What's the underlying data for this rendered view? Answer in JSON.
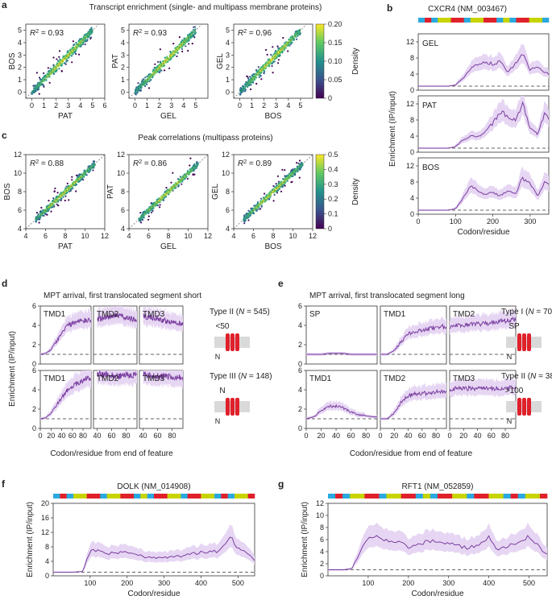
{
  "panels": {
    "a": {
      "letter": "a",
      "title": "Transcript enrichment (single- and multipass membrane proteins)",
      "colorbar": {
        "label": "Density",
        "ticks": [
          "0.20",
          "0.15",
          "0.10",
          "0.05",
          "0"
        ]
      },
      "plots": [
        {
          "r2": "= 0.93",
          "xlabel": "PAT",
          "ylabel": "BOS",
          "xticks": [
            "0",
            "1",
            "2",
            "3",
            "4",
            "5",
            "6"
          ],
          "yticks": [
            "0",
            "1",
            "2",
            "3",
            "4",
            "5"
          ]
        },
        {
          "r2": "= 0.93",
          "xlabel": "GEL",
          "ylabel": "PAT",
          "xticks": [
            "0",
            "1",
            "2",
            "3",
            "4",
            "5"
          ],
          "yticks": [
            "0",
            "1",
            "2",
            "3",
            "4",
            "5"
          ]
        },
        {
          "r2": "= 0.96",
          "xlabel": "BOS",
          "ylabel": "GEL",
          "xticks": [
            "0",
            "1",
            "2",
            "3",
            "4",
            "5"
          ],
          "yticks": [
            "0",
            "1",
            "2",
            "3",
            "4",
            "5"
          ]
        }
      ]
    },
    "c": {
      "letter": "c",
      "title": "Peak correlations (multipass proteins)",
      "colorbar": {
        "label": "Density",
        "ticks": [
          "0.5",
          "0.4",
          "0.3",
          "0.2",
          "0.1",
          "0"
        ]
      },
      "plots": [
        {
          "r2": "= 0.88",
          "xlabel": "PAT",
          "ylabel": "BOS",
          "xticks": [
            "4",
            "6",
            "8",
            "10",
            "12"
          ],
          "yticks": [
            "4",
            "6",
            "8",
            "10",
            "12"
          ]
        },
        {
          "r2": "= 0.86",
          "xlabel": "GEL",
          "ylabel": "PAT",
          "xticks": [
            "4",
            "6",
            "8",
            "10",
            "12"
          ],
          "yticks": [
            "4",
            "6",
            "8",
            "10",
            "12"
          ]
        },
        {
          "r2": "= 0.89",
          "xlabel": "BOS",
          "ylabel": "GEL",
          "xticks": [
            "4",
            "6",
            "8",
            "10",
            "12"
          ],
          "yticks": [
            "4",
            "6",
            "8",
            "10",
            "12"
          ]
        }
      ]
    },
    "b": {
      "letter": "b",
      "title": "CXCR4 (NM_003467)",
      "xlabel": "Codon/residue",
      "ylabel": "Enrichment (IP/input)",
      "xticks": [
        "0",
        "100",
        "200",
        "300"
      ],
      "yticks": [
        "0",
        "4",
        "8",
        "12"
      ],
      "subs": [
        "GEL",
        "PAT",
        "BOS"
      ]
    },
    "d": {
      "letter": "d",
      "title": "MPT arrival, first translocated segment short",
      "ylabel": "Enrichment (IP/input)",
      "xlabel": "Codon/residue from end of feature",
      "yticks": [
        "0",
        "2",
        "4",
        "6"
      ],
      "xticks_first": [
        "0",
        "20",
        "40",
        "60",
        "80"
      ],
      "xticks_rest": [
        "40",
        "60",
        "80"
      ],
      "rows": [
        [
          "TMD1",
          "TMD2",
          "TMD3"
        ],
        [
          "TMD1",
          "TMD2",
          "TMD3"
        ]
      ],
      "types": [
        {
          "label": "Type II",
          "n": "545",
          "note": "<50"
        },
        {
          "label": "Type III",
          "n": "148",
          "note": "N"
        }
      ]
    },
    "e": {
      "letter": "e",
      "title": "MPT arrival, first translocated segment long",
      "xlabel": "Codon/residue from end of feature",
      "yticks": [
        "0",
        "2",
        "4",
        "6"
      ],
      "xticks": [
        "0",
        "20",
        "40",
        "60",
        "80"
      ],
      "rows": [
        [
          "SP",
          "TMD1",
          "TMD2"
        ],
        [
          "TMD1",
          "TMD2",
          "TMD3"
        ]
      ],
      "types": [
        {
          "label": "Type I",
          "n": "70",
          "note": "SP"
        },
        {
          "label": "Type II",
          "n": "38",
          "note": ">100"
        }
      ]
    },
    "f": {
      "letter": "f",
      "title": "DOLK (NM_014908)",
      "xlabel": "Codon/residue",
      "ylabel": "Enrichment (IP/input)",
      "xticks": [
        "100",
        "200",
        "300",
        "400",
        "500"
      ],
      "yticks": [
        "0",
        "4",
        "8",
        "12",
        "16",
        "20"
      ]
    },
    "g": {
      "letter": "g",
      "title": "RFT1 (NM_052859)",
      "xlabel": "Codon/residue",
      "ylabel": "Enrichment (IP/input)",
      "xticks": [
        "100",
        "200",
        "300",
        "400",
        "500"
      ],
      "yticks": [
        "0",
        "2",
        "4",
        "6",
        "8",
        "10",
        "12"
      ]
    }
  },
  "chart_data": [
    {
      "type": "scatter",
      "panel": "a",
      "kind": "density",
      "series": [
        {
          "name": "BOS vs PAT",
          "r2": 0.93
        },
        {
          "name": "PAT vs GEL",
          "r2": 0.93
        },
        {
          "name": "GEL vs BOS",
          "r2": 0.96
        }
      ],
      "xlim": [
        -0.5,
        6
      ],
      "ylim": [
        -0.5,
        5.5
      ]
    },
    {
      "type": "scatter",
      "panel": "c",
      "kind": "density",
      "series": [
        {
          "name": "BOS vs PAT",
          "r2": 0.88
        },
        {
          "name": "PAT vs GEL",
          "r2": 0.86
        },
        {
          "name": "GEL vs BOS",
          "r2": 0.89
        }
      ],
      "xlim": [
        4,
        12
      ],
      "ylim": [
        4,
        12
      ]
    },
    {
      "type": "line",
      "panel": "b",
      "xlim": [
        0,
        350
      ],
      "ylim": [
        0,
        14
      ],
      "series": [
        {
          "x": [
            0,
            80,
            100,
            120,
            140,
            160,
            180,
            200,
            220,
            240,
            260,
            280,
            300,
            320,
            340,
            350
          ],
          "y": [
            1,
            1,
            1.3,
            3,
            5.5,
            6.2,
            7,
            6.5,
            7,
            4.5,
            6.5,
            9,
            5,
            6,
            4.5,
            4
          ]
        },
        {
          "x": [
            0,
            80,
            100,
            120,
            140,
            160,
            180,
            200,
            220,
            240,
            260,
            280,
            300,
            320,
            340,
            350
          ],
          "y": [
            1,
            1,
            1.4,
            3,
            4,
            3.8,
            5,
            7.2,
            10,
            9,
            8,
            12,
            6,
            4.5,
            10,
            8
          ]
        },
        {
          "x": [
            0,
            80,
            100,
            120,
            140,
            160,
            180,
            200,
            220,
            240,
            260,
            280,
            300,
            320,
            340,
            350
          ],
          "y": [
            1,
            1,
            1.4,
            4,
            7,
            6,
            5,
            5.5,
            4.5,
            6,
            5,
            9,
            7.5,
            4.5,
            8,
            7
          ]
        }
      ]
    },
    {
      "type": "line",
      "panel": "d",
      "xlim": [
        0,
        95
      ],
      "ylim": [
        0,
        6
      ],
      "series": [
        {
          "x": [
            0,
            10,
            20,
            30,
            40,
            50,
            60,
            70,
            80,
            90,
            95
          ],
          "y": [
            1,
            1.1,
            1.5,
            2.3,
            3.2,
            3.9,
            4.2,
            4.4,
            4.5,
            4.5,
            4.5
          ]
        },
        {
          "x": [
            40,
            50,
            60,
            70,
            80,
            90,
            95
          ],
          "y": [
            4.6,
            4.8,
            5,
            5,
            4.8,
            4.6,
            4.5
          ]
        },
        {
          "x": [
            40,
            50,
            60,
            70,
            80,
            90,
            95
          ],
          "y": [
            5,
            4.8,
            4.7,
            4.5,
            4.3,
            4.2,
            4.1
          ]
        },
        {
          "x": [
            0,
            10,
            20,
            30,
            40,
            50,
            60,
            70,
            80,
            90,
            95
          ],
          "y": [
            1,
            1.1,
            1.6,
            2.4,
            3.2,
            3.9,
            4.3,
            4.7,
            5,
            5.2,
            5.3
          ]
        },
        {
          "x": [
            40,
            50,
            60,
            70,
            80,
            90,
            95
          ],
          "y": [
            5.6,
            5.6,
            5.5,
            5.4,
            5.5,
            5.5,
            5.5
          ]
        },
        {
          "x": [
            40,
            50,
            60,
            70,
            80,
            90,
            95
          ],
          "y": [
            5.6,
            5.5,
            5.4,
            5.4,
            5.3,
            5.3,
            5.2
          ]
        }
      ]
    },
    {
      "type": "line",
      "panel": "e",
      "xlim": [
        0,
        95
      ],
      "ylim": [
        0,
        6
      ],
      "series": [
        {
          "x": [
            0,
            10,
            20,
            30,
            40,
            50,
            60,
            70,
            80,
            90,
            95
          ],
          "y": [
            1,
            1,
            1,
            1.1,
            1.1,
            1.1,
            1,
            1,
            1,
            1,
            1
          ]
        },
        {
          "x": [
            0,
            10,
            20,
            30,
            40,
            50,
            60,
            70,
            80,
            90,
            95
          ],
          "y": [
            1,
            1,
            1.4,
            2.3,
            3.1,
            3.4,
            3.5,
            3.7,
            3.8,
            3.9,
            3.9
          ]
        },
        {
          "x": [
            0,
            10,
            20,
            30,
            40,
            50,
            60,
            70,
            80,
            90,
            95
          ],
          "y": [
            3.9,
            4,
            4,
            4.1,
            4.1,
            4.2,
            4.3,
            4.4,
            4.5,
            4.6,
            4.6
          ]
        },
        {
          "x": [
            0,
            10,
            20,
            30,
            40,
            50,
            60,
            70,
            80,
            90,
            95
          ],
          "y": [
            1,
            1.2,
            1.8,
            2.3,
            2.3,
            2.1,
            1.7,
            1.4,
            1.3,
            1.2,
            1.2
          ]
        },
        {
          "x": [
            0,
            10,
            20,
            30,
            40,
            50,
            60,
            70,
            80,
            90,
            95
          ],
          "y": [
            1,
            1,
            1.6,
            2.7,
            3.4,
            3.6,
            3.6,
            3.7,
            3.8,
            3.9,
            3.9
          ]
        },
        {
          "x": [
            0,
            10,
            20,
            30,
            40,
            50,
            60,
            70,
            80,
            90,
            95
          ],
          "y": [
            4,
            4.1,
            4.2,
            4.1,
            4.1,
            4.2,
            4.2,
            4.1,
            4.1,
            4.2,
            4.2
          ]
        }
      ]
    },
    {
      "type": "line",
      "panel": "f",
      "xlim": [
        0,
        545
      ],
      "ylim": [
        0,
        20
      ],
      "x": [
        0,
        50,
        80,
        100,
        120,
        150,
        200,
        250,
        300,
        350,
        400,
        450,
        480,
        500,
        520,
        545
      ],
      "y": [
        1,
        1,
        1.2,
        7,
        7,
        6.2,
        6.5,
        5.2,
        5,
        5.5,
        6.5,
        6.8,
        11,
        7.5,
        7,
        4
      ]
    },
    {
      "type": "line",
      "panel": "g",
      "xlim": [
        0,
        545
      ],
      "ylim": [
        0,
        12
      ],
      "x": [
        0,
        40,
        60,
        80,
        100,
        120,
        150,
        180,
        200,
        250,
        300,
        350,
        380,
        400,
        420,
        450,
        480,
        500,
        520,
        545
      ],
      "y": [
        1,
        1,
        1.2,
        4,
        6,
        7,
        5.5,
        5.8,
        4.5,
        5.8,
        5.4,
        4.5,
        5.5,
        6.5,
        4.3,
        5,
        5.5,
        6.5,
        5.2,
        3.5
      ]
    }
  ]
}
